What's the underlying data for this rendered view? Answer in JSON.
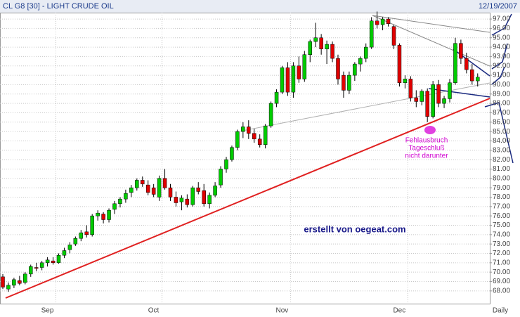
{
  "chart_data": {
    "type": "candlestick",
    "title": "CL G8 [30] - LIGHT CRUDE OIL",
    "date": "12/19/2007",
    "x_label": "Daily",
    "categories": [
      null,
      null,
      null,
      null,
      null,
      null,
      null,
      null,
      null,
      null,
      "Sep",
      null,
      null,
      null,
      null,
      null,
      null,
      null,
      null,
      null,
      null,
      null,
      null,
      null,
      null,
      null,
      null,
      null,
      null,
      "Oct",
      null,
      null,
      null,
      null,
      null,
      null,
      null,
      null,
      null,
      null,
      null,
      null,
      null,
      null,
      null,
      null,
      null,
      null,
      null,
      null,
      null,
      null,
      "Nov",
      null,
      null,
      null,
      null,
      null,
      null,
      null,
      null,
      null,
      null,
      null,
      null,
      null,
      null,
      null,
      null,
      null,
      null,
      null,
      null,
      "Dec",
      null,
      null,
      null,
      null,
      null,
      null,
      null,
      null,
      null,
      null,
      null,
      null
    ],
    "open": [
      69.5,
      68.2,
      68.6,
      69.1,
      68.9,
      69.8,
      70.5,
      70.5,
      71.0,
      71.2,
      71.0,
      71.8,
      72.4,
      73.0,
      73.6,
      74.3,
      74.0,
      76.0,
      76.2,
      75.6,
      76.7,
      77.3,
      77.8,
      78.5,
      79.0,
      79.8,
      79.3,
      79.0,
      78.0,
      80.0,
      79.0,
      78.0,
      77.5,
      77.8,
      77.2,
      79.0,
      78.7,
      77.3,
      78.2,
      79.3,
      81.0,
      82.0,
      83.3,
      85.0,
      85.5,
      84.8,
      84.2,
      83.6,
      85.6,
      88.0,
      89.2,
      91.8,
      89.2,
      92.0,
      90.6,
      93.2,
      94.6,
      95.0,
      93.8,
      94.3,
      92.8,
      91.0,
      89.4,
      91.0,
      92.2,
      92.8,
      94.0,
      96.8,
      96.4,
      97.0,
      96.2,
      94.2,
      90.2,
      90.6,
      88.6,
      88.2,
      89.3,
      86.6,
      90.0,
      88.0,
      88.5,
      90.2,
      94.4,
      92.8,
      91.6,
      90.4
    ],
    "high": [
      69.8,
      68.9,
      69.4,
      69.6,
      70.0,
      70.8,
      71.0,
      71.2,
      71.6,
      71.6,
      72.0,
      72.6,
      73.2,
      73.8,
      74.5,
      75.0,
      76.2,
      76.6,
      76.4,
      76.8,
      77.6,
      78.0,
      78.8,
      79.3,
      80.0,
      80.2,
      79.8,
      79.4,
      80.3,
      81.0,
      79.4,
      78.6,
      78.2,
      78.3,
      79.2,
      79.6,
      79.4,
      78.5,
      79.6,
      81.3,
      82.3,
      83.5,
      85.2,
      86.0,
      86.2,
      85.3,
      84.7,
      85.8,
      88.2,
      89.5,
      92.0,
      92.4,
      92.4,
      93.0,
      93.6,
      94.8,
      96.6,
      95.4,
      94.7,
      94.6,
      93.2,
      91.4,
      91.4,
      92.4,
      93.0,
      94.4,
      97.2,
      97.8,
      97.2,
      97.2,
      96.4,
      94.4,
      91.0,
      90.9,
      89.4,
      89.5,
      89.6,
      90.4,
      90.5,
      88.8,
      90.6,
      95.0,
      94.8,
      93.4,
      92.2,
      91.2
    ],
    "low": [
      68.2,
      67.9,
      68.3,
      68.6,
      68.7,
      69.5,
      70.1,
      70.2,
      70.6,
      70.8,
      70.9,
      71.5,
      72.0,
      72.8,
      73.3,
      73.7,
      73.8,
      75.5,
      75.2,
      75.3,
      76.2,
      76.9,
      77.4,
      78.0,
      78.7,
      79.1,
      78.2,
      78.0,
      77.6,
      78.8,
      77.6,
      77.0,
      76.6,
      76.9,
      77.0,
      78.3,
      77.0,
      76.8,
      78.0,
      79.0,
      80.6,
      81.8,
      83.0,
      84.3,
      84.2,
      83.8,
      83.3,
      83.2,
      85.4,
      87.6,
      89.0,
      88.8,
      88.6,
      90.2,
      90.3,
      92.4,
      94.0,
      93.2,
      92.2,
      92.4,
      90.0,
      88.6,
      89.0,
      90.4,
      91.4,
      92.4,
      93.8,
      96.0,
      95.8,
      96.2,
      93.8,
      89.8,
      89.6,
      88.2,
      87.6,
      87.8,
      86.0,
      86.4,
      87.6,
      87.5,
      88.1,
      90.0,
      92.2,
      91.2,
      90.0,
      89.8
    ],
    "close": [
      68.4,
      68.6,
      69.2,
      68.8,
      69.8,
      70.6,
      70.4,
      71.0,
      71.3,
      71.0,
      71.8,
      72.3,
      72.9,
      73.6,
      74.2,
      74.0,
      76.0,
      76.3,
      75.6,
      76.6,
      77.3,
      77.8,
      78.4,
      79.0,
      79.8,
      79.4,
      78.5,
      78.3,
      80.0,
      79.0,
      78.0,
      77.4,
      77.9,
      77.2,
      79.0,
      78.6,
      77.3,
      78.2,
      79.2,
      81.0,
      82.0,
      83.3,
      85.0,
      85.5,
      84.8,
      84.2,
      83.6,
      85.6,
      88.0,
      89.2,
      91.8,
      89.2,
      92.0,
      90.6,
      93.2,
      94.6,
      95.0,
      93.8,
      94.3,
      92.8,
      90.6,
      89.4,
      91.0,
      92.2,
      92.8,
      94.0,
      96.8,
      96.4,
      97.0,
      96.5,
      94.2,
      90.2,
      90.6,
      88.6,
      88.2,
      89.3,
      86.6,
      90.0,
      88.0,
      88.5,
      90.2,
      94.4,
      92.8,
      91.6,
      90.4,
      90.8
    ],
    "up_color": "#00cc00",
    "down_color": "#e00000",
    "ylim": [
      66.64,
      97.68
    ],
    "yticks": [
      {
        "value": 68,
        "label": "68.00"
      },
      {
        "value": 69,
        "label": "69.00"
      },
      {
        "value": 70,
        "label": "70.00"
      },
      {
        "value": 71,
        "label": "71.00"
      },
      {
        "value": 72,
        "label": "72.00"
      },
      {
        "value": 73,
        "label": "73.00"
      },
      {
        "value": 74,
        "label": "74.00"
      },
      {
        "value": 75,
        "label": "75.00"
      },
      {
        "value": 76,
        "label": "76.00"
      },
      {
        "value": 77,
        "label": "77.00"
      },
      {
        "value": 78,
        "label": "78.00"
      },
      {
        "value": 79,
        "label": "79.00"
      },
      {
        "value": 80,
        "label": "80.00"
      },
      {
        "value": 81,
        "label": "81.00"
      },
      {
        "value": 82,
        "label": "82.00"
      },
      {
        "value": 83,
        "label": "83.00"
      },
      {
        "value": 84,
        "label": "84.00"
      },
      {
        "value": 85,
        "label": "85.00"
      },
      {
        "value": 86,
        "label": "86.00"
      },
      {
        "value": 87,
        "label": "87.00"
      },
      {
        "value": 88,
        "label": "88.00"
      },
      {
        "value": 89,
        "label": "89.00"
      },
      {
        "value": 90,
        "label": "90.00"
      },
      {
        "value": 91,
        "label": "91.00"
      },
      {
        "value": 92,
        "label": "92.00"
      },
      {
        "value": 93,
        "label": "93.00"
      },
      {
        "value": 94,
        "label": "94.00"
      },
      {
        "value": 95,
        "label": "95.00"
      },
      {
        "value": 96,
        "label": "96.00"
      },
      {
        "value": 97,
        "label": "97.00"
      }
    ],
    "grid": true,
    "annotations": [
      "Fehlausbruch",
      "Tageschluß",
      "nicht darunter",
      "erstellt von oegeat.com"
    ]
  }
}
